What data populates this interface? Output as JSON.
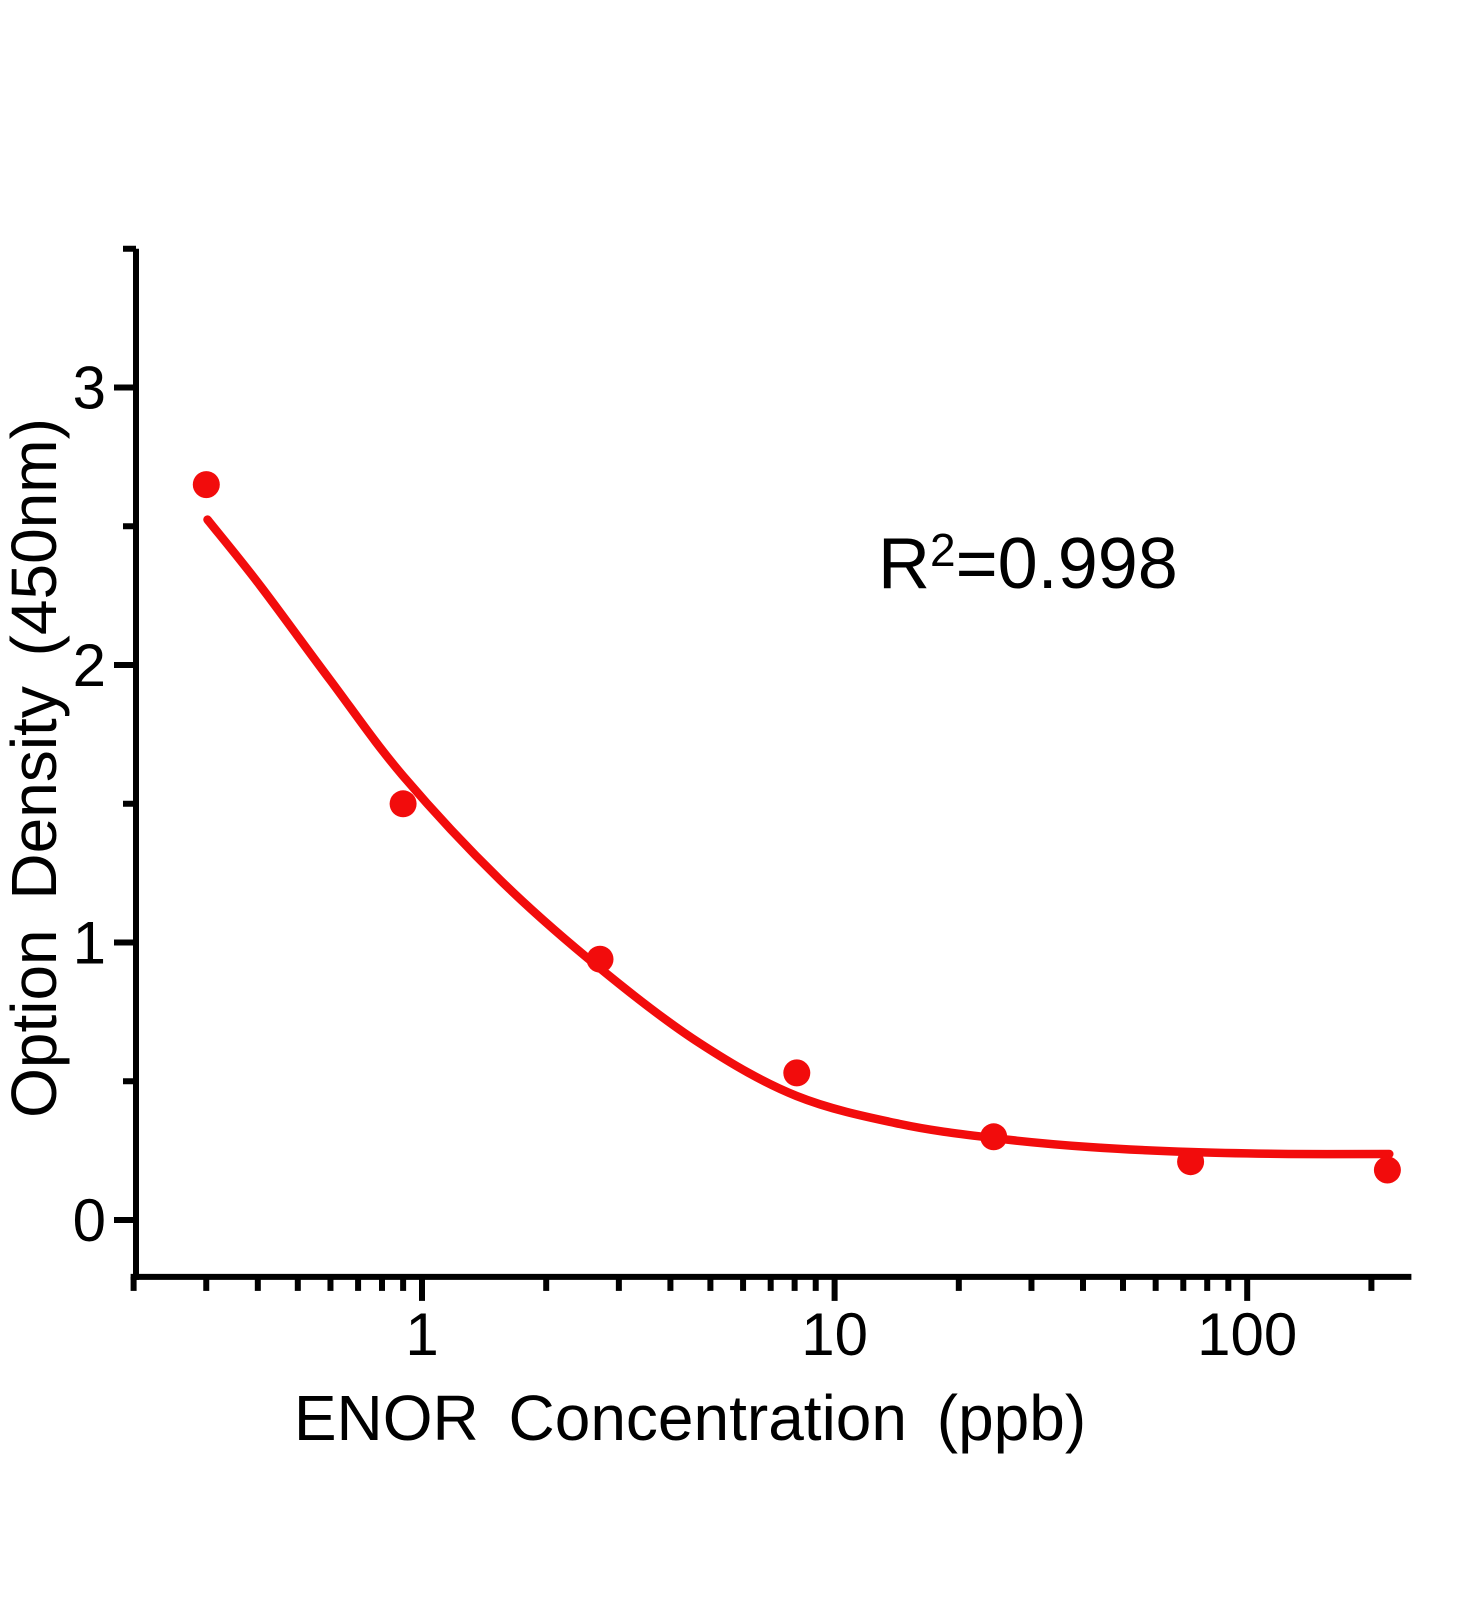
{
  "chart_data": {
    "type": "scatter",
    "title": "",
    "xlabel": "ENOR Concentration (ppb)",
    "ylabel": "Option Density (450nm)",
    "x_scale": "log",
    "x_range": [
      0.2,
      250
    ],
    "y_range": [
      -0.205,
      3.5
    ],
    "x_ticks_major": [
      1,
      10,
      100
    ],
    "x_tick_labels": [
      "1",
      "10",
      "100"
    ],
    "x_ticks_minor": [
      0.2,
      0.3,
      0.4,
      0.5,
      0.6,
      0.7,
      0.8,
      0.9,
      2,
      3,
      4,
      5,
      6,
      7,
      8,
      9,
      20,
      30,
      40,
      50,
      60,
      70,
      80,
      90,
      200
    ],
    "y_ticks_major": [
      0,
      1,
      2,
      3
    ],
    "y_tick_labels": [
      "0",
      "1",
      "2",
      "3"
    ],
    "y_ticks_minor": [
      0.5,
      1.5,
      2.5,
      3.5
    ],
    "grid": "off",
    "legend": "none",
    "points": [
      {
        "x": 0.3,
        "y": 2.65
      },
      {
        "x": 0.9,
        "y": 1.5
      },
      {
        "x": 2.7,
        "y": 0.94
      },
      {
        "x": 8.1,
        "y": 0.53
      },
      {
        "x": 24.3,
        "y": 0.3
      },
      {
        "x": 72.9,
        "y": 0.21
      },
      {
        "x": 218.7,
        "y": 0.18
      }
    ],
    "fit_curve": [
      {
        "x": 0.302,
        "y": 2.524
      },
      {
        "x": 0.405,
        "y": 2.287
      },
      {
        "x": 0.6,
        "y": 1.944
      },
      {
        "x": 0.9,
        "y": 1.6
      },
      {
        "x": 1.55,
        "y": 1.224
      },
      {
        "x": 2.7,
        "y": 0.907
      },
      {
        "x": 4.71,
        "y": 0.637
      },
      {
        "x": 8.09,
        "y": 0.447
      },
      {
        "x": 14.4,
        "y": 0.346
      },
      {
        "x": 24.4,
        "y": 0.295
      },
      {
        "x": 41.4,
        "y": 0.263
      },
      {
        "x": 73.0,
        "y": 0.245
      },
      {
        "x": 126.0,
        "y": 0.238
      },
      {
        "x": 221.0,
        "y": 0.238
      }
    ],
    "annotation": {
      "prefix": "R",
      "sup": "2",
      "suffix": "=0.998",
      "full_text": "R2=0.998"
    },
    "colors": {
      "series": "#f20c0c",
      "axis": "#000000",
      "background": "#ffffff"
    }
  }
}
